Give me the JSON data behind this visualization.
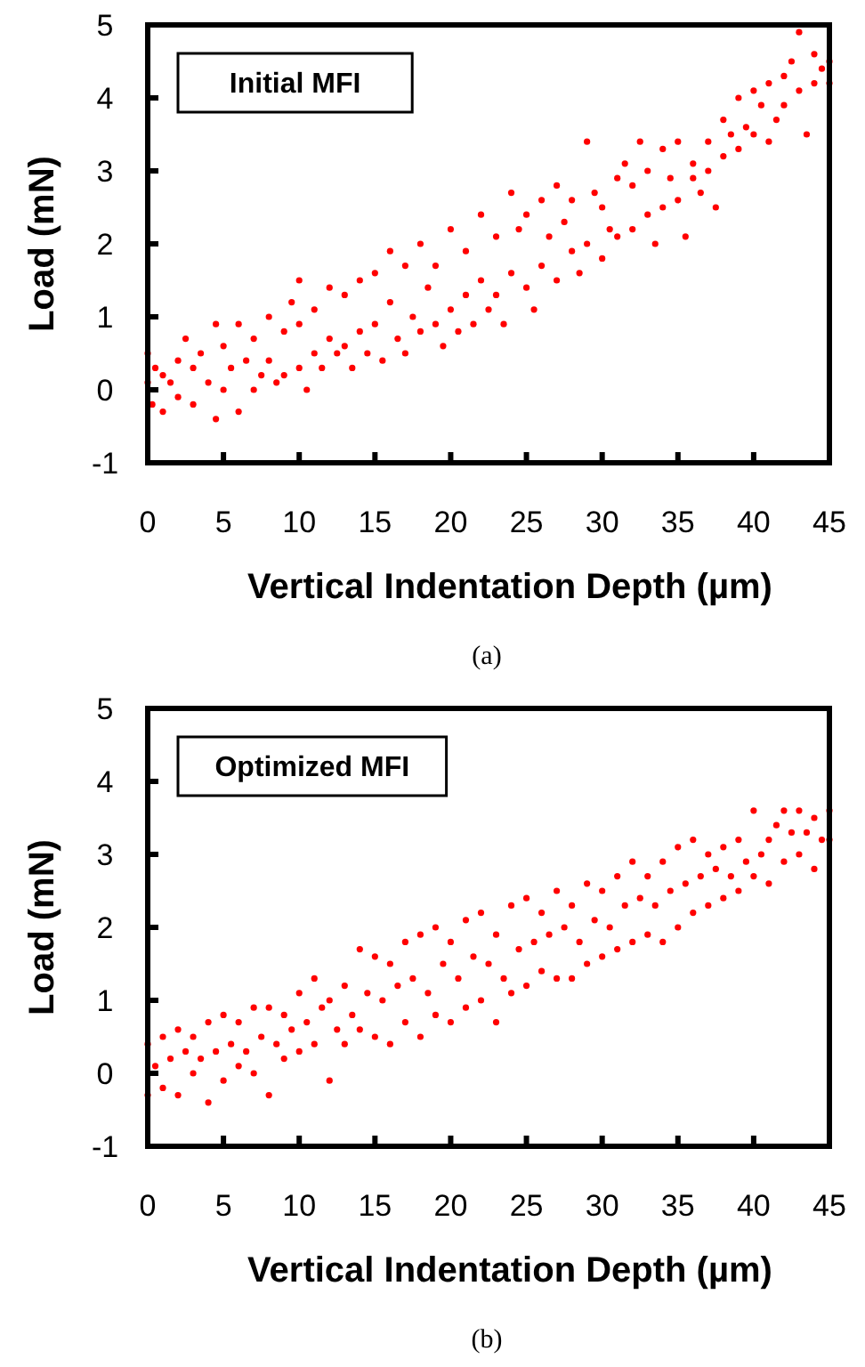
{
  "chart_data": [
    {
      "type": "scatter",
      "title": "Initial MFI",
      "xlabel": "Vertical Indentation Depth (µm)",
      "ylabel": "Load (mN)",
      "annotations": [
        "(a)"
      ],
      "color": "#ff0000",
      "marker": "circle",
      "grid": false,
      "xlim": [
        0,
        45
      ],
      "ylim": [
        -1,
        5
      ],
      "xticks": [
        0,
        5,
        10,
        15,
        20,
        25,
        30,
        35,
        40,
        45
      ],
      "yticks": [
        -1,
        0,
        1,
        2,
        3,
        4,
        5
      ],
      "x": [
        0,
        0,
        0.3,
        0.5,
        1,
        1,
        1.5,
        2,
        2,
        2.5,
        3,
        3,
        3.5,
        4,
        4.5,
        4.5,
        5,
        5,
        5.5,
        6,
        6,
        6.5,
        7,
        7,
        7.5,
        8,
        8,
        8.5,
        9,
        9,
        9.5,
        10,
        10,
        10,
        10.5,
        11,
        11,
        11.5,
        12,
        12,
        12.5,
        13,
        13,
        13.5,
        14,
        14,
        14.5,
        15,
        15,
        15.5,
        16,
        16,
        16.5,
        17,
        17,
        17.5,
        18,
        18,
        18.5,
        19,
        19,
        19.5,
        20,
        20,
        20.5,
        21,
        21,
        21.5,
        22,
        22,
        22.5,
        23,
        23,
        23.5,
        24,
        24,
        24.5,
        25,
        25,
        25.5,
        26,
        26,
        26.5,
        27,
        27,
        27.5,
        28,
        28,
        28.5,
        29,
        29,
        29.5,
        30,
        30,
        30.5,
        31,
        31,
        31.5,
        32,
        32,
        32.5,
        33,
        33,
        33.5,
        34,
        34,
        34.5,
        35,
        35,
        35.5,
        36,
        36,
        36.5,
        37,
        37,
        37.5,
        38,
        38,
        38.5,
        39,
        39,
        39.5,
        40,
        40,
        40.5,
        41,
        41,
        41.5,
        42,
        42,
        42.5,
        43,
        43,
        43.5,
        44,
        44,
        44.5,
        45,
        45
      ],
      "values": [
        0.5,
        0.1,
        -0.2,
        0.3,
        0.2,
        -0.3,
        0.1,
        0.4,
        -0.1,
        0.7,
        0.3,
        -0.2,
        0.5,
        0.1,
        -0.4,
        0.9,
        0.6,
        0.0,
        0.3,
        0.9,
        -0.3,
        0.4,
        0.7,
        0.0,
        0.2,
        1.0,
        0.4,
        0.1,
        0.8,
        0.2,
        1.2,
        0.9,
        0.3,
        1.5,
        0.0,
        1.1,
        0.5,
        0.3,
        1.4,
        0.7,
        0.5,
        1.3,
        0.6,
        0.3,
        1.5,
        0.8,
        0.5,
        1.6,
        0.9,
        0.4,
        1.9,
        1.2,
        0.7,
        1.7,
        0.5,
        1.0,
        2.0,
        0.8,
        1.4,
        1.7,
        0.9,
        0.6,
        2.2,
        1.1,
        0.8,
        1.9,
        1.3,
        0.9,
        2.4,
        1.5,
        1.1,
        2.1,
        1.3,
        0.9,
        2.7,
        1.6,
        2.2,
        2.4,
        1.4,
        1.1,
        2.6,
        1.7,
        2.1,
        2.8,
        1.5,
        2.3,
        2.6,
        1.9,
        1.6,
        3.4,
        2.0,
        2.7,
        2.5,
        1.8,
        2.2,
        2.9,
        2.1,
        3.1,
        2.8,
        2.2,
        3.4,
        3.0,
        2.4,
        2.0,
        3.3,
        2.5,
        2.9,
        3.4,
        2.6,
        2.1,
        3.1,
        2.9,
        2.7,
        3.4,
        3.0,
        2.5,
        3.7,
        3.2,
        3.5,
        4.0,
        3.3,
        3.6,
        4.1,
        3.5,
        3.9,
        4.2,
        3.4,
        3.7,
        4.3,
        3.9,
        4.5,
        4.9,
        4.1,
        3.5,
        4.6,
        4.2,
        4.4,
        4.5,
        4.2
      ]
    },
    {
      "type": "scatter",
      "title": "Optimized MFI",
      "xlabel": "Vertical Indentation Depth (µm)",
      "ylabel": "Load (mN)",
      "annotations": [
        "(b)"
      ],
      "color": "#ff0000",
      "marker": "circle",
      "grid": false,
      "xlim": [
        0,
        45
      ],
      "ylim": [
        -1,
        5
      ],
      "xticks": [
        0,
        5,
        10,
        15,
        20,
        25,
        30,
        35,
        40,
        45
      ],
      "yticks": [
        -1,
        0,
        1,
        2,
        3,
        4,
        5
      ],
      "x": [
        0,
        0,
        0.5,
        1,
        1,
        1.5,
        2,
        2,
        2.5,
        3,
        3,
        3.5,
        4,
        4,
        4.5,
        5,
        5,
        5.5,
        6,
        6,
        6.5,
        7,
        7,
        7.5,
        8,
        8,
        8.5,
        9,
        9,
        9.5,
        10,
        10,
        10.5,
        11,
        11,
        11.5,
        12,
        12,
        12.5,
        13,
        13,
        13.5,
        14,
        14,
        14.5,
        15,
        15,
        15.5,
        16,
        16,
        16.5,
        17,
        17,
        17.5,
        18,
        18,
        18.5,
        19,
        19,
        19.5,
        20,
        20,
        20.5,
        21,
        21,
        21.5,
        22,
        22,
        22.5,
        23,
        23,
        23.5,
        24,
        24,
        24.5,
        25,
        25,
        25.5,
        26,
        26,
        26.5,
        27,
        27,
        27.5,
        28,
        28,
        28.5,
        29,
        29,
        29.5,
        30,
        30,
        30.5,
        31,
        31,
        31.5,
        32,
        32,
        32.5,
        33,
        33,
        33.5,
        34,
        34,
        34.5,
        35,
        35,
        35.5,
        36,
        36,
        36.5,
        37,
        37,
        37.5,
        38,
        38,
        38.5,
        39,
        39,
        39.5,
        40,
        40,
        40.5,
        41,
        41,
        41.5,
        42,
        42,
        42.5,
        43,
        43,
        43.5,
        44,
        44,
        44.5,
        45,
        45
      ],
      "values": [
        0.4,
        -0.3,
        0.1,
        -0.2,
        0.5,
        0.2,
        -0.3,
        0.6,
        0.3,
        0.0,
        0.5,
        0.2,
        -0.4,
        0.7,
        0.3,
        -0.1,
        0.8,
        0.4,
        0.1,
        0.7,
        0.3,
        0.9,
        0.0,
        0.5,
        -0.3,
        0.9,
        0.4,
        0.2,
        0.8,
        0.6,
        1.1,
        0.3,
        0.7,
        1.3,
        0.4,
        0.9,
        -0.1,
        1.0,
        0.6,
        1.2,
        0.4,
        0.8,
        1.7,
        0.6,
        1.1,
        1.6,
        0.5,
        1.0,
        1.5,
        0.4,
        1.2,
        1.8,
        0.7,
        1.3,
        1.9,
        0.5,
        1.1,
        2.0,
        0.8,
        1.5,
        1.8,
        0.7,
        1.3,
        2.1,
        0.9,
        1.6,
        2.2,
        1.0,
        1.5,
        0.7,
        1.9,
        1.3,
        2.3,
        1.1,
        1.7,
        2.4,
        1.2,
        1.8,
        2.2,
        1.4,
        1.9,
        2.5,
        1.3,
        2.0,
        2.3,
        1.3,
        1.8,
        2.6,
        1.5,
        2.1,
        2.5,
        1.6,
        2.0,
        2.7,
        1.7,
        2.3,
        2.9,
        1.8,
        2.4,
        2.7,
        1.9,
        2.3,
        2.9,
        1.8,
        2.5,
        3.1,
        2.0,
        2.6,
        3.2,
        2.2,
        2.7,
        3.0,
        2.3,
        2.8,
        3.1,
        2.4,
        2.7,
        3.2,
        2.5,
        2.9,
        3.6,
        2.7,
        3.0,
        3.2,
        2.6,
        3.4,
        3.6,
        2.9,
        3.3,
        3.6,
        3.0,
        3.3,
        3.5,
        2.8,
        3.2,
        3.6,
        3.2
      ]
    }
  ]
}
